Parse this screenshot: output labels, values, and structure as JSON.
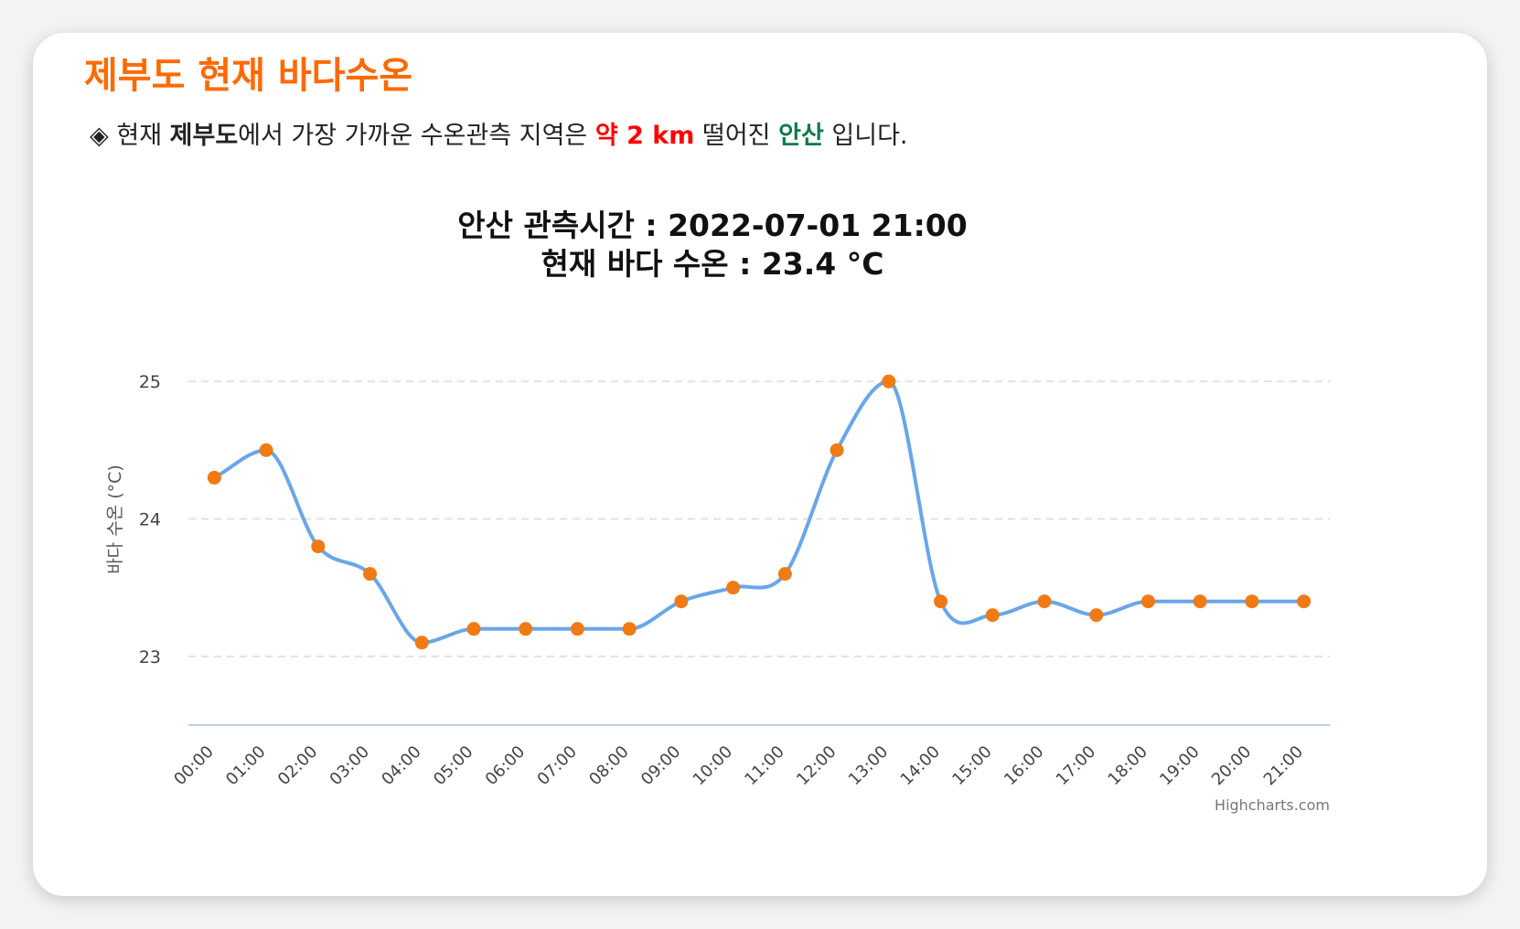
{
  "page": {
    "title": "제부도 현재 바다수온",
    "info": {
      "bullet": "◈",
      "prefix": "현재",
      "location": "제부도",
      "mid1": "에서 가장 가까운 수온관측 지역은",
      "distance": "약 2 km",
      "mid2": "떨어진",
      "station": "안산",
      "suffix": "입니다."
    }
  },
  "colors": {
    "title": "#ff6a00",
    "distance": "#ff0000",
    "station": "#0a7a4a",
    "line": "#6aa6e8",
    "marker": "#f07a14",
    "grid": "#d9d9d9",
    "axis": "#a9bde4"
  },
  "chart_data": {
    "type": "line",
    "title": "안산 관측시간 : 2022-07-01 21:00",
    "subtitle": "현재 바다 수온 : 23.4 °C",
    "xlabel": "",
    "ylabel": "바다 수온 (°C)",
    "credits": "Highcharts.com",
    "ylim": [
      22.5,
      25.5
    ],
    "yticks": [
      23,
      24,
      25
    ],
    "grid": true,
    "categories": [
      "00:00",
      "01:00",
      "02:00",
      "03:00",
      "04:00",
      "05:00",
      "06:00",
      "07:00",
      "08:00",
      "09:00",
      "10:00",
      "11:00",
      "12:00",
      "13:00",
      "14:00",
      "15:00",
      "16:00",
      "17:00",
      "18:00",
      "19:00",
      "20:00",
      "21:00"
    ],
    "series": [
      {
        "values": [
          24.3,
          24.5,
          23.8,
          23.6,
          23.1,
          23.2,
          23.2,
          23.2,
          23.2,
          23.4,
          23.5,
          23.6,
          24.5,
          25.0,
          23.4,
          23.3,
          23.4,
          23.3,
          23.4,
          23.4,
          23.4,
          23.4
        ]
      }
    ]
  }
}
